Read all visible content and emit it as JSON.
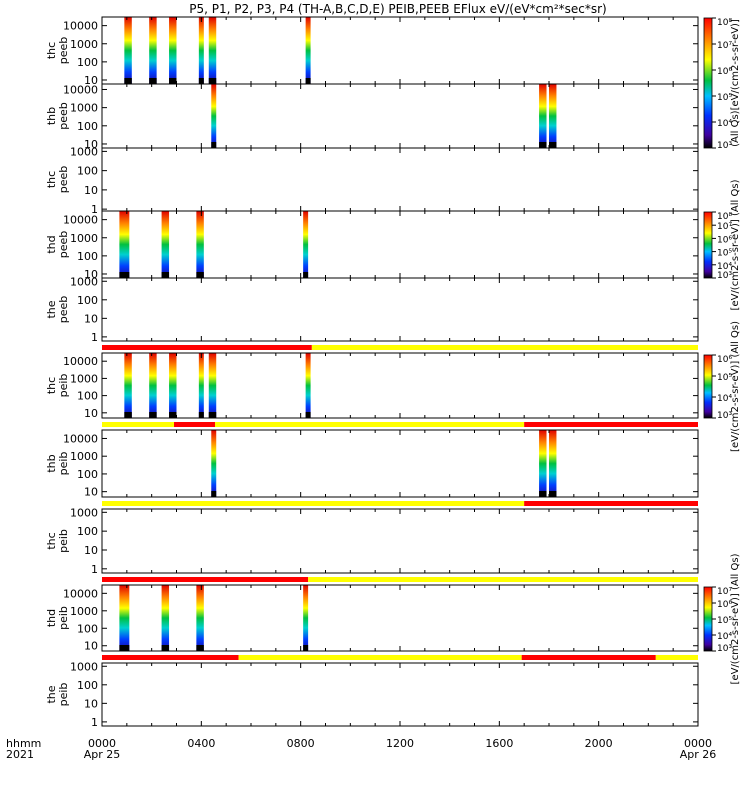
{
  "title": "P5, P1, P2, P3, P4 (TH-A,B,C,D,E) PEIB,PEEB EFlux eV/(eV*cm²*sec*sr)",
  "time_axis": {
    "row_labels": [
      "hhmm",
      "2021"
    ],
    "ticks": [
      {
        "hour": 0,
        "label": "0000",
        "date": "Apr 25"
      },
      {
        "hour": 4,
        "label": "0400",
        "date": ""
      },
      {
        "hour": 8,
        "label": "0800",
        "date": ""
      },
      {
        "hour": 12,
        "label": "1200",
        "date": ""
      },
      {
        "hour": 16,
        "label": "1600",
        "date": ""
      },
      {
        "hour": 20,
        "label": "2000",
        "date": ""
      },
      {
        "hour": 24,
        "label": "0000",
        "date": "Apr 26"
      }
    ],
    "xlim": [
      0,
      24
    ],
    "units": "hours"
  },
  "colorbars": [
    {
      "label": "(All Qs)[eV/(cm2-s-sr-eV)]",
      "ticks": [
        "10³",
        "10⁴",
        "10⁵",
        "10⁶",
        "10⁷",
        "10⁸"
      ]
    },
    {
      "label": "[eV/(cm2-s-sr-eV)] (All Qs)",
      "ticks": [
        "10³",
        "10⁴",
        "10⁵",
        "10⁶",
        "10⁷",
        "10⁸"
      ]
    },
    {
      "label": "[eV/(cm2-s-sr-eV)] (All Qs)",
      "ticks": [
        "10³",
        "10⁴",
        "10⁵",
        "10⁶"
      ]
    },
    {
      "label": "[eV/(cm2-s-sr-eV)] (All Qs)",
      "ticks": [
        "10³",
        "10⁴",
        "10⁵",
        "10⁶",
        "10⁷"
      ]
    }
  ],
  "chart_data": {
    "type": "heatmap",
    "x_units": "hours",
    "panels": [
      {
        "probe": "thc",
        "species": "peeb",
        "yticks": [
          "10",
          "100",
          "1000",
          "10000"
        ],
        "ylim": [
          6,
          30000
        ],
        "spectra": [
          [
            0.9,
            1.2
          ],
          [
            1.9,
            2.2
          ],
          [
            2.7,
            3.0
          ],
          [
            3.9,
            4.1
          ],
          [
            4.3,
            4.6
          ],
          [
            8.2,
            8.4
          ]
        ]
      },
      {
        "probe": "thb",
        "species": "peeb",
        "yticks": [
          "10",
          "100",
          "1000",
          "10000"
        ],
        "ylim": [
          6,
          20000
        ],
        "spectra": [
          [
            4.4,
            4.6
          ],
          [
            17.6,
            17.9
          ],
          [
            18.0,
            18.3
          ]
        ]
      },
      {
        "probe": "thc",
        "species": "peeb",
        "yticks": [
          "1",
          "10",
          "100",
          "1000"
        ],
        "ylim": [
          0.8,
          1500
        ],
        "spectra": []
      },
      {
        "probe": "thd",
        "species": "peeb",
        "yticks": [
          "10",
          "100",
          "1000",
          "10000"
        ],
        "ylim": [
          6,
          30000
        ],
        "spectra": [
          [
            0.7,
            1.1
          ],
          [
            2.4,
            2.7
          ],
          [
            3.8,
            4.1
          ],
          [
            8.1,
            8.3
          ]
        ]
      },
      {
        "probe": "the",
        "species": "peeb",
        "yticks": [
          "1",
          "10",
          "100",
          "1000"
        ],
        "ylim": [
          0.6,
          1500
        ],
        "spectra": []
      },
      {
        "probe": "thc",
        "species": "peib",
        "yticks": [
          "10",
          "100",
          "1000",
          "10000"
        ],
        "ylim": [
          5,
          30000
        ],
        "bar": [
          {
            "x0": 0,
            "x1": 8.45,
            "color": "#ff0000"
          },
          {
            "x0": 8.45,
            "x1": 24,
            "color": "#ffff00"
          }
        ],
        "spectra": [
          [
            0.9,
            1.2
          ],
          [
            1.9,
            2.2
          ],
          [
            2.7,
            3.0
          ],
          [
            3.9,
            4.1
          ],
          [
            4.3,
            4.6
          ],
          [
            8.2,
            8.4
          ]
        ]
      },
      {
        "probe": "thb",
        "species": "peib",
        "yticks": [
          "10",
          "100",
          "1000",
          "10000"
        ],
        "ylim": [
          5,
          30000
        ],
        "bar": [
          {
            "x0": 0,
            "x1": 2.9,
            "color": "#ffff00"
          },
          {
            "x0": 2.9,
            "x1": 4.55,
            "color": "#ff0000"
          },
          {
            "x0": 4.55,
            "x1": 17.0,
            "color": "#ffff00"
          },
          {
            "x0": 17.0,
            "x1": 24,
            "color": "#ff0000"
          }
        ],
        "spectra": [
          [
            4.4,
            4.6
          ],
          [
            17.6,
            17.9
          ],
          [
            18.0,
            18.3
          ]
        ]
      },
      {
        "probe": "thc",
        "species": "peib",
        "yticks": [
          "1",
          "10",
          "100",
          "1000"
        ],
        "ylim": [
          0.6,
          1500
        ],
        "bar": [
          {
            "x0": 0,
            "x1": 17.0,
            "color": "#ffff00"
          },
          {
            "x0": 17.0,
            "x1": 24,
            "color": "#ff0000"
          }
        ],
        "spectra": []
      },
      {
        "probe": "thd",
        "species": "peib",
        "yticks": [
          "10",
          "100",
          "1000",
          "10000"
        ],
        "ylim": [
          5,
          30000
        ],
        "bar": [
          {
            "x0": 0,
            "x1": 8.3,
            "color": "#ff0000"
          },
          {
            "x0": 8.3,
            "x1": 24,
            "color": "#ffff00"
          }
        ],
        "spectra": [
          [
            0.7,
            1.1
          ],
          [
            2.4,
            2.7
          ],
          [
            3.8,
            4.1
          ],
          [
            8.1,
            8.3
          ]
        ]
      },
      {
        "probe": "the",
        "species": "peib",
        "yticks": [
          "1",
          "10",
          "100",
          "1000"
        ],
        "ylim": [
          0.6,
          1500
        ],
        "bar": [
          {
            "x0": 0,
            "x1": 5.5,
            "color": "#ff0000"
          },
          {
            "x0": 5.5,
            "x1": 16.9,
            "color": "#ffff00"
          },
          {
            "x0": 16.9,
            "x1": 22.3,
            "color": "#ff0000"
          },
          {
            "x0": 22.3,
            "x1": 24,
            "color": "#ffff00"
          }
        ],
        "spectra": []
      }
    ]
  }
}
